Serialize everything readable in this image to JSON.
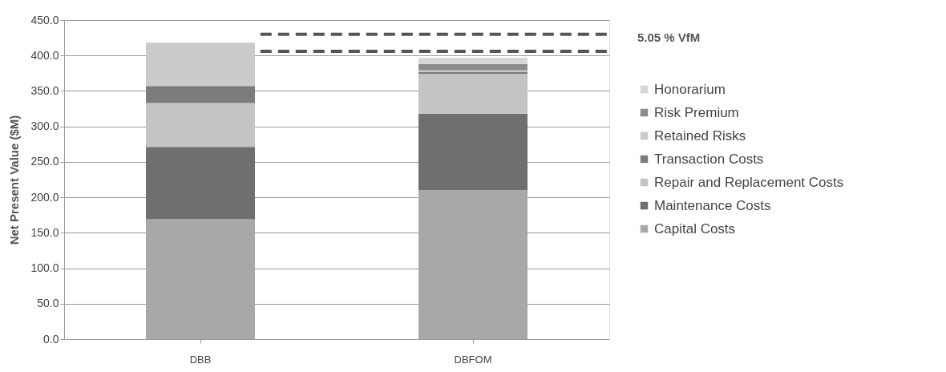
{
  "chart_data": {
    "type": "bar",
    "stacked": true,
    "ylabel": "Net Present Value ($M)",
    "categories": [
      "DBB",
      "DBFOM"
    ],
    "series": [
      {
        "name": "Capital Costs",
        "color": "#a8a8a8",
        "values": [
          169,
          210
        ]
      },
      {
        "name": "Maintenance Costs",
        "color": "#6f6f6f",
        "values": [
          102,
          108
        ]
      },
      {
        "name": "Repair and Replacement Costs",
        "color": "#c4c4c4",
        "values": [
          62,
          56
        ]
      },
      {
        "name": "Transaction Costs",
        "color": "#7c7c7c",
        "values": [
          24,
          3
        ]
      },
      {
        "name": "Retained Risks",
        "color": "#cbcbcb",
        "values": [
          61,
          2
        ]
      },
      {
        "name": "Risk Premium",
        "color": "#8c8c8c",
        "values": [
          0,
          9
        ]
      },
      {
        "name": "Honorarium",
        "color": "#d6d6d6",
        "values": [
          0,
          9
        ]
      }
    ],
    "ylim": [
      0,
      450
    ],
    "yticks": [
      {
        "value": 0,
        "label": "0.0"
      },
      {
        "value": 50,
        "label": "50.0"
      },
      {
        "value": 100,
        "label": "100.0"
      },
      {
        "value": 150,
        "label": "150.0"
      },
      {
        "value": 200,
        "label": "200.0"
      },
      {
        "value": 250,
        "label": "250.0"
      },
      {
        "value": 300,
        "label": "300.0"
      },
      {
        "value": 350,
        "label": "350.0"
      },
      {
        "value": 400,
        "label": "400.0"
      },
      {
        "value": 450,
        "label": "450.0"
      }
    ],
    "ref_lines": [
      {
        "axis": "y",
        "value": 430,
        "color": "#555555",
        "line_style": "dashed"
      },
      {
        "axis": "y",
        "value": 406,
        "color": "#555555",
        "line_style": "dashed"
      }
    ],
    "annotations": [
      "5.05 % VfM"
    ],
    "grid": "y",
    "legend": "right"
  }
}
